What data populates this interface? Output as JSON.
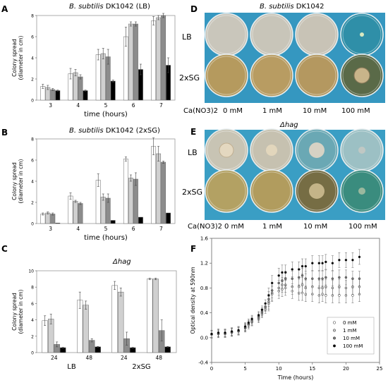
{
  "panels": {
    "A": {
      "label": "A",
      "title_italic": "B. subtilis",
      "title_normal": "DK1042 (LB)"
    },
    "B": {
      "label": "B",
      "title_italic": "B. subtilis",
      "title_normal": "DK1042 (2xSG)"
    },
    "C": {
      "label": "C",
      "title": "Δhag"
    },
    "D": {
      "label": "D",
      "title_italic": "B. subtilis",
      "title_normal": "DK1042",
      "rows": [
        "LB",
        "2xSG"
      ],
      "col_header": "Ca(NO3)2",
      "cols": [
        "0 mM",
        "1 mM",
        "10 mM",
        "100 mM"
      ]
    },
    "E": {
      "label": "E",
      "title": "Δhag",
      "rows": [
        "LB",
        "2xSG"
      ],
      "col_header": "Ca(NO3)2",
      "cols": [
        "0 mM",
        "1 mM",
        "10 mM",
        "100 mM"
      ]
    },
    "F": {
      "label": "F"
    }
  },
  "colors": {
    "c0": "#ffffff",
    "c1": "#d0d0d0",
    "c10": "#8c8c8c",
    "c100": "#000000",
    "plate_blue": "#3a9ec4",
    "plate_lb": "#cfc6b4",
    "plate_sg": "#b59a5e"
  },
  "chart_data": [
    {
      "type": "bar",
      "id": "A",
      "categories": [
        "3",
        "4",
        "5",
        "6",
        "7"
      ],
      "series": [
        {
          "name": "0 mM",
          "values": [
            1.3,
            2.5,
            4.3,
            6.0,
            7.5
          ],
          "err": [
            0.2,
            0.5,
            0.5,
            0.9,
            0.4
          ]
        },
        {
          "name": "1 mM",
          "values": [
            1.2,
            2.6,
            4.4,
            7.2,
            7.8
          ],
          "err": [
            0.2,
            0.3,
            0.5,
            0.2,
            0.2
          ]
        },
        {
          "name": "10 mM",
          "values": [
            1.0,
            2.2,
            4.1,
            7.2,
            8.0
          ],
          "err": [
            0.1,
            0.2,
            0.7,
            0.2,
            0.2
          ]
        },
        {
          "name": "100 mM",
          "values": [
            0.9,
            0.9,
            1.8,
            2.9,
            3.3
          ],
          "err": [
            0.05,
            0.05,
            0.1,
            0.5,
            0.7
          ]
        }
      ],
      "xlabel": "time (hours)",
      "ylabel": "Colony spread",
      "ylabel2": "(diameter in cm)",
      "ylim": [
        0,
        8
      ],
      "yticks": [
        "0",
        "2",
        "4",
        "6",
        "8"
      ]
    },
    {
      "type": "bar",
      "id": "B",
      "categories": [
        "3",
        "4",
        "5",
        "6",
        "7"
      ],
      "series": [
        {
          "name": "0 mM",
          "values": [
            0.9,
            2.6,
            4.1,
            6.1,
            7.3
          ],
          "err": [
            0.1,
            0.3,
            0.6,
            0.2,
            0.8
          ]
        },
        {
          "name": "1 mM",
          "values": [
            1.0,
            2.1,
            2.5,
            4.3,
            6.6
          ],
          "err": [
            0.1,
            0.1,
            0.3,
            0.3,
            0.7
          ]
        },
        {
          "name": "10 mM",
          "values": [
            0.9,
            1.9,
            2.4,
            4.2,
            5.8
          ],
          "err": [
            0.1,
            0.1,
            0.4,
            0.6,
            0.1
          ]
        },
        {
          "name": "100 mM",
          "values": [
            0.05,
            0.0,
            0.3,
            0.6,
            1.0
          ],
          "err": [
            0,
            0,
            0,
            0,
            0
          ]
        }
      ],
      "xlabel": "time (hours)",
      "ylabel": "Colony spread",
      "ylabel2": "(diameter in cm)",
      "ylim": [
        0,
        8
      ],
      "yticks": [
        "0",
        "2",
        "4",
        "6",
        "8"
      ]
    },
    {
      "type": "bar",
      "id": "C",
      "categories": [
        "24",
        "48",
        "24",
        "48"
      ],
      "groups": [
        "LB",
        "2xSG"
      ],
      "series": [
        {
          "name": "0 mM",
          "values": [
            3.9,
            6.4,
            8.2,
            9.0
          ],
          "err": [
            0.6,
            1.0,
            0.5,
            0.1
          ]
        },
        {
          "name": "1 mM",
          "values": [
            4.1,
            5.8,
            7.4,
            9.0
          ],
          "err": [
            0.6,
            0.5,
            0.5,
            0.1
          ]
        },
        {
          "name": "10 mM",
          "values": [
            1.0,
            1.5,
            1.7,
            2.7
          ],
          "err": [
            0.3,
            0.2,
            0.8,
            1.3
          ]
        },
        {
          "name": "100 mM",
          "values": [
            0.6,
            0.7,
            0.6,
            0.7
          ],
          "err": [
            0.05,
            0.05,
            0.05,
            0.05
          ]
        }
      ],
      "ylabel": "Colony spread",
      "ylabel2": "(diameter in cm)",
      "ylim": [
        0,
        10
      ],
      "yticks": [
        "0",
        "2",
        "4",
        "6",
        "8",
        "10"
      ]
    },
    {
      "type": "scatter",
      "id": "F",
      "x": [
        0,
        1,
        2,
        3,
        4,
        5,
        5.5,
        6,
        7,
        7.5,
        8,
        8.5,
        9,
        10,
        10.5,
        11,
        12,
        13,
        13.5,
        14,
        15,
        16,
        16.5,
        17,
        18,
        19,
        20,
        21,
        22
      ],
      "series": [
        {
          "name": "0 mM",
          "values": [
            0.05,
            0.06,
            0.06,
            0.08,
            0.1,
            0.15,
            0.2,
            0.25,
            0.3,
            0.38,
            0.45,
            0.55,
            0.7,
            0.75,
            0.78,
            0.8,
            0.75,
            0.72,
            0.72,
            0.7,
            0.7,
            0.68,
            0.7,
            0.68,
            0.68,
            0.68,
            0.68,
            0.68,
            0.7
          ]
        },
        {
          "name": "1 mM",
          "values": [
            0.05,
            0.06,
            0.07,
            0.09,
            0.11,
            0.16,
            0.22,
            0.26,
            0.32,
            0.4,
            0.48,
            0.58,
            0.72,
            0.8,
            0.85,
            0.85,
            0.82,
            0.82,
            0.85,
            0.8,
            0.82,
            0.8,
            0.8,
            0.82,
            0.8,
            0.82,
            0.8,
            0.82,
            0.82
          ]
        },
        {
          "name": "10 mM",
          "values": [
            0.06,
            0.07,
            0.07,
            0.09,
            0.11,
            0.17,
            0.22,
            0.28,
            0.34,
            0.42,
            0.5,
            0.62,
            0.76,
            0.88,
            0.92,
            0.95,
            0.95,
            0.97,
            1.0,
            0.95,
            0.95,
            0.95,
            0.95,
            0.97,
            0.95,
            0.97,
            0.97,
            0.95,
            0.95
          ]
        },
        {
          "name": "100 mM",
          "values": [
            0.06,
            0.08,
            0.08,
            0.1,
            0.12,
            0.18,
            0.24,
            0.3,
            0.36,
            0.45,
            0.55,
            0.68,
            0.88,
            1.0,
            1.05,
            1.05,
            1.1,
            1.1,
            1.15,
            1.15,
            1.2,
            1.2,
            1.2,
            1.22,
            1.2,
            1.25,
            1.25,
            1.25,
            1.3
          ]
        }
      ],
      "err": 0.12,
      "xlabel": "Time (hours)",
      "ylabel": "Optical density at 590nm",
      "xlim": [
        0,
        25
      ],
      "ylim": [
        -0.4,
        1.6
      ],
      "xticks": [
        "0",
        "5",
        "10",
        "15",
        "20",
        "25"
      ],
      "yticks": [
        "-0.4",
        "0.0",
        "0.4",
        "0.8",
        "1.2",
        "1.6"
      ],
      "legend_position": "lower-right"
    }
  ]
}
